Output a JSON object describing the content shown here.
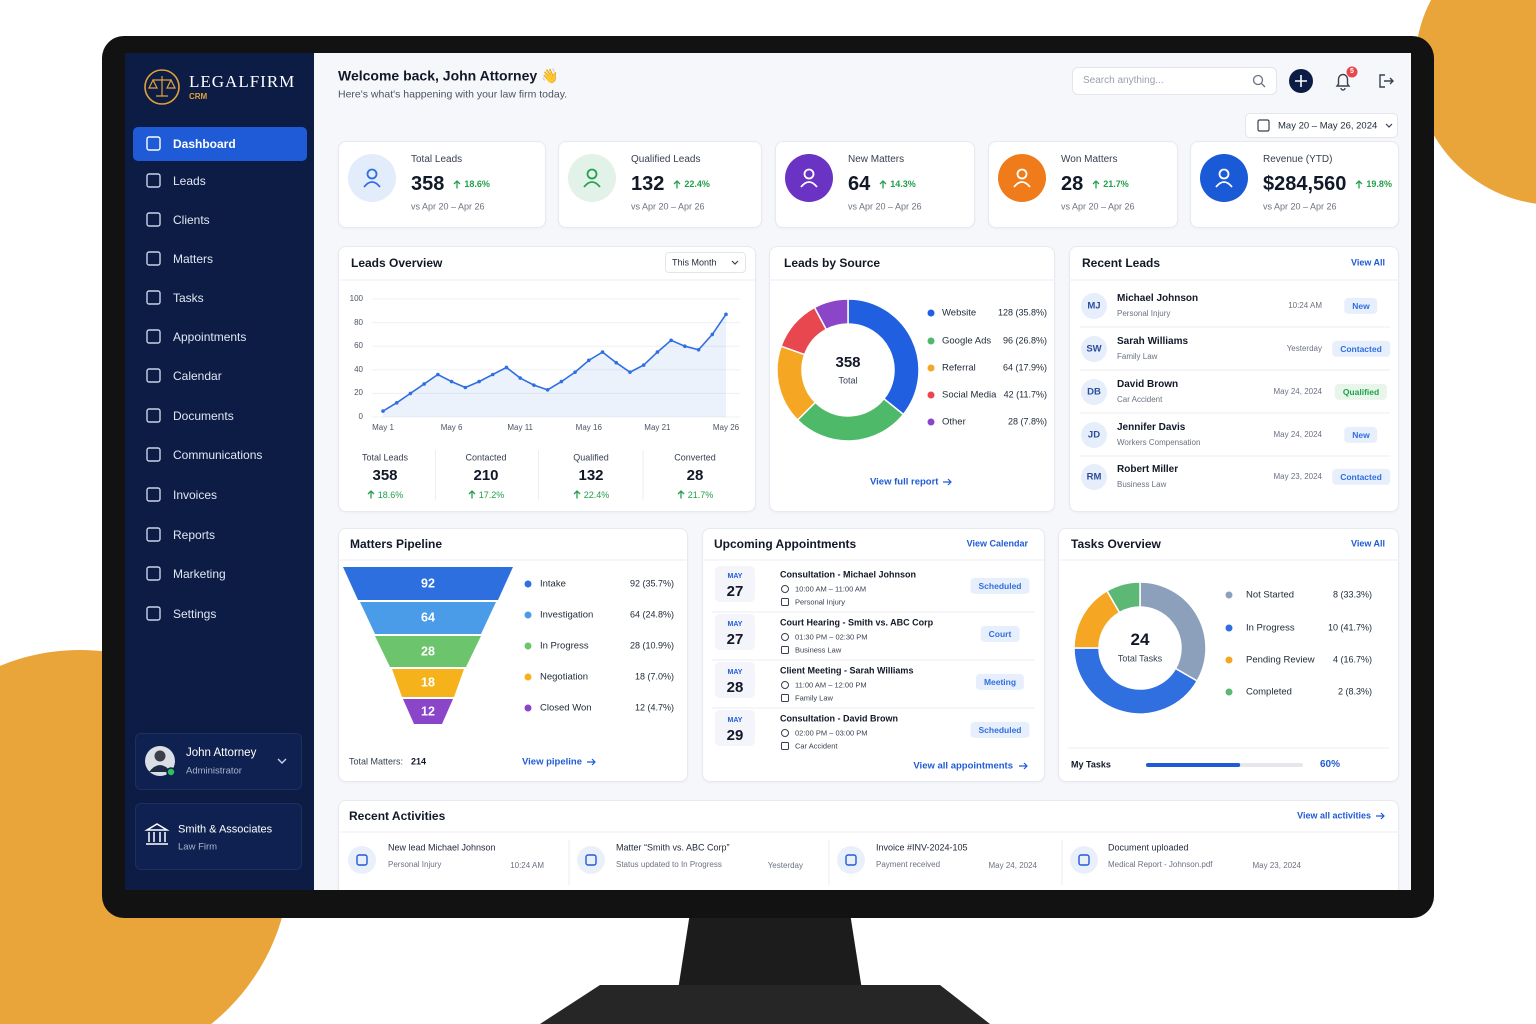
{
  "brand": {
    "name": "LEGALFIRM",
    "tag": "CRM"
  },
  "nav": [
    "Dashboard",
    "Leads",
    "Clients",
    "Matters",
    "Tasks",
    "Appointments",
    "Calendar",
    "Documents",
    "Communications",
    "Invoices",
    "Reports",
    "Marketing",
    "Settings"
  ],
  "user": {
    "name": "John Attorney",
    "role": "Administrator"
  },
  "firm": {
    "name": "Smith & Associates",
    "type": "Law Firm"
  },
  "header": {
    "title": "Welcome back, John Attorney 👋",
    "subtitle": "Here's what's happening with your law firm today.",
    "search_placeholder": "Search anything...",
    "notification_count": 5,
    "date_range": "May 20 – May 26, 2024"
  },
  "kpis": [
    {
      "label": "Total Leads",
      "value": "358",
      "change": "18.6%",
      "period": "vs Apr 20 – Apr 26",
      "color": "#2f6fe0",
      "solid": false
    },
    {
      "label": "Qualified Leads",
      "value": "132",
      "change": "22.4%",
      "period": "vs Apr 20 – Apr 26",
      "color": "#27a14f",
      "solid": false
    },
    {
      "label": "New Matters",
      "value": "64",
      "change": "14.3%",
      "period": "vs Apr 20 – Apr 26",
      "color": "#6a33c4",
      "solid": true
    },
    {
      "label": "Won Matters",
      "value": "28",
      "change": "21.7%",
      "period": "vs Apr 20 – Apr 26",
      "color": "#f07b1a",
      "solid": true
    },
    {
      "label": "Revenue (YTD)",
      "value": "$284,560",
      "change": "19.8%",
      "period": "vs Apr 20 – Apr 26",
      "color": "#1a5ad6",
      "solid": true
    }
  ],
  "leads_overview": {
    "filter": "This Month",
    "stats": [
      {
        "label": "Total Leads",
        "value": "358",
        "change": "18.6%"
      },
      {
        "label": "Contacted",
        "value": "210",
        "change": "17.2%"
      },
      {
        "label": "Qualified",
        "value": "132",
        "change": "22.4%"
      },
      {
        "label": "Converted",
        "value": "28",
        "change": "21.7%"
      }
    ]
  },
  "leads_by_source": {
    "link": "View full report"
  },
  "recent_leads": {
    "title": "Recent Leads",
    "link": "View All",
    "items": [
      {
        "initials": "MJ",
        "name": "Michael Johnson",
        "type": "Personal Injury",
        "time": "10:24 AM",
        "status": "New",
        "status_color": "#2f6fe0"
      },
      {
        "initials": "SW",
        "name": "Sarah Williams",
        "type": "Family Law",
        "time": "Yesterday",
        "status": "Contacted",
        "status_color": "#2f6fe0"
      },
      {
        "initials": "DB",
        "name": "David Brown",
        "type": "Car Accident",
        "time": "May 24, 2024",
        "status": "Qualified",
        "status_color": "#22a04b"
      },
      {
        "initials": "JD",
        "name": "Jennifer Davis",
        "type": "Workers Compensation",
        "time": "May 24, 2024",
        "status": "New",
        "status_color": "#2f6fe0"
      },
      {
        "initials": "RM",
        "name": "Robert Miller",
        "type": "Business Law",
        "time": "May 23, 2024",
        "status": "Contacted",
        "status_color": "#2f6fe0"
      }
    ]
  },
  "matters_pipeline": {
    "total_label": "Total Matters:",
    "total": "214",
    "link": "View pipeline"
  },
  "appointments": {
    "title": "Upcoming Appointments",
    "link": "View Calendar",
    "footer_link": "View all appointments",
    "items": [
      {
        "month": "MAY",
        "day": "27",
        "title": "Consultation - Michael Johnson",
        "time": "10:00 AM – 11:00 AM",
        "type": "Personal Injury",
        "status": "Scheduled",
        "status_color": "#2f6fe0"
      },
      {
        "month": "MAY",
        "day": "27",
        "title": "Court Hearing - Smith vs. ABC Corp",
        "time": "01:30 PM – 02:30 PM",
        "type": "Business Law",
        "status": "Court",
        "status_color": "#2f6fe0"
      },
      {
        "month": "MAY",
        "day": "28",
        "title": "Client Meeting - Sarah Williams",
        "time": "11:00 AM – 12:00 PM",
        "type": "Family Law",
        "status": "Meeting",
        "status_color": "#2f6fe0"
      },
      {
        "month": "MAY",
        "day": "29",
        "title": "Consultation - David Brown",
        "time": "02:00 PM – 03:00 PM",
        "type": "Car Accident",
        "status": "Scheduled",
        "status_color": "#2f6fe0"
      }
    ]
  },
  "tasks_overview": {
    "link": "View All",
    "my_tasks_label": "My Tasks",
    "my_tasks_progress": 60,
    "my_tasks_progress_label": "60%"
  },
  "recent_activities": {
    "title": "Recent Activities",
    "link": "View all activities",
    "items": [
      {
        "title": "New lead Michael Johnson",
        "detail": "Personal Injury",
        "time": "10:24 AM"
      },
      {
        "title": "Matter “Smith vs. ABC Corp”",
        "detail": "Status updated to In Progress",
        "time": "Yesterday"
      },
      {
        "title": "Invoice #INV-2024-105",
        "detail": "Payment received",
        "time": "May 24, 2024"
      },
      {
        "title": "Document uploaded",
        "detail": "Medical Report - Johnson.pdf",
        "time": "May 23, 2024"
      }
    ]
  },
  "chart_data": [
    {
      "type": "line",
      "title": "Leads Overview",
      "categories": [
        "May 1",
        null,
        null,
        null,
        null,
        "May 6",
        null,
        null,
        null,
        null,
        "May 11",
        null,
        null,
        null,
        null,
        "May 16",
        null,
        null,
        null,
        null,
        "May 21",
        null,
        null,
        null,
        null,
        "May 26"
      ],
      "values": [
        5,
        12,
        20,
        28,
        36,
        30,
        25,
        30,
        36,
        42,
        33,
        27,
        23,
        30,
        38,
        48,
        55,
        46,
        38,
        44,
        55,
        65,
        60,
        57,
        70,
        87
      ],
      "color": "#2f6fe0",
      "ylim": [
        0,
        100
      ],
      "yticks": [
        0,
        20,
        40,
        60,
        80,
        100
      ],
      "grid": true
    },
    {
      "type": "pie",
      "title": "Leads by Source",
      "center_value": 358,
      "center_label": "Total",
      "categories": [
        "Website",
        "Google Ads",
        "Referral",
        "Social Media",
        "Other"
      ],
      "values": [
        128,
        96,
        64,
        42,
        28
      ],
      "value_labels": [
        "128 (35.8%)",
        "96 (26.8%)",
        "64 (17.9%)",
        "42 (11.7%)",
        "28 (7.8%)"
      ],
      "colors": [
        "#1f5fe0",
        "#4fb96a",
        "#f5a623",
        "#e9474f",
        "#8b45c9"
      ]
    },
    {
      "type": "funnel",
      "title": "Matters Pipeline",
      "categories": [
        "Intake",
        "Investigation",
        "In Progress",
        "Negotiation",
        "Closed Won"
      ],
      "values": [
        92,
        64,
        28,
        18,
        12
      ],
      "value_labels": [
        "92 (35.7%)",
        "64 (24.8%)",
        "28 (10.9%)",
        "18 (7.0%)",
        "12 (4.7%)"
      ],
      "colors": [
        "#2e6fe0",
        "#4a9be8",
        "#6cc46c",
        "#f5b21a",
        "#8b45c9"
      ]
    },
    {
      "type": "pie",
      "title": "Tasks Overview",
      "center_value": 24,
      "center_label": "Total Tasks",
      "categories": [
        "Not Started",
        "In Progress",
        "Pending Review",
        "Completed"
      ],
      "values": [
        8,
        10,
        4,
        2
      ],
      "value_labels": [
        "8 (33.3%)",
        "10 (41.7%)",
        "4 (16.7%)",
        "2 (8.3%)"
      ],
      "colors": [
        "#8da0bb",
        "#2f6fe0",
        "#f5a623",
        "#5cb874"
      ]
    }
  ]
}
